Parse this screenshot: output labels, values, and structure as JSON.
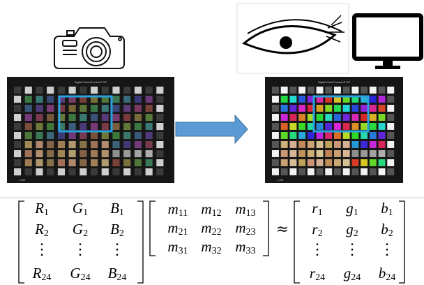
{
  "camera_image": {
    "title": "Digital ColorChecker® SG",
    "brand": "x-rite"
  },
  "display_image": {
    "title": "Digital ColorChecker® SG",
    "brand": "x-rite"
  },
  "equation": {
    "camera_rgb": {
      "rows": [
        [
          {
            "symbol": "R",
            "index": "1"
          },
          {
            "symbol": "G",
            "index": "1"
          },
          {
            "symbol": "B",
            "index": "1"
          }
        ],
        [
          {
            "symbol": "R",
            "index": "2"
          },
          {
            "symbol": "G",
            "index": "2"
          },
          {
            "symbol": "B",
            "index": "2"
          }
        ],
        [
          "⋮",
          "⋮",
          "⋮"
        ],
        [
          {
            "symbol": "R",
            "index": "24"
          },
          {
            "symbol": "G",
            "index": "24"
          },
          {
            "symbol": "B",
            "index": "24"
          }
        ]
      ]
    },
    "transform": {
      "rows": [
        [
          {
            "symbol": "m",
            "index": "11"
          },
          {
            "symbol": "m",
            "index": "12"
          },
          {
            "symbol": "m",
            "index": "13"
          }
        ],
        [
          {
            "symbol": "m",
            "index": "21"
          },
          {
            "symbol": "m",
            "index": "22"
          },
          {
            "symbol": "m",
            "index": "23"
          }
        ],
        [
          {
            "symbol": "m",
            "index": "31"
          },
          {
            "symbol": "m",
            "index": "32"
          },
          {
            "symbol": "m",
            "index": "33"
          }
        ]
      ]
    },
    "relation": "≈",
    "target_rgb": {
      "rows": [
        [
          {
            "symbol": "r",
            "index": "1"
          },
          {
            "symbol": "g",
            "index": "1"
          },
          {
            "symbol": "b",
            "index": "1"
          }
        ],
        [
          {
            "symbol": "r",
            "index": "2"
          },
          {
            "symbol": "g",
            "index": "2"
          },
          {
            "symbol": "b",
            "index": "2"
          }
        ],
        [
          "⋮",
          "⋮",
          "⋮"
        ],
        [
          {
            "symbol": "r",
            "index": "24"
          },
          {
            "symbol": "g",
            "index": "24"
          },
          {
            "symbol": "b",
            "index": "24"
          }
        ]
      ]
    }
  }
}
